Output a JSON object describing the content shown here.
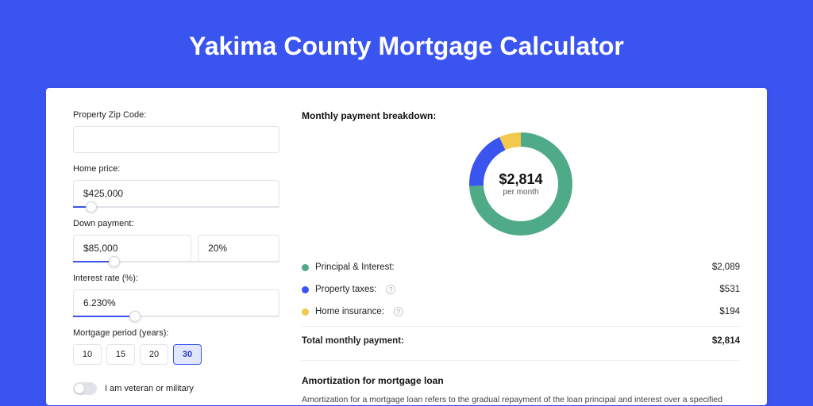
{
  "page_title": "Yakima County Mortgage Calculator",
  "colors": {
    "page_bg": "#3a54f0",
    "card_bg": "#ffffff",
    "accent": "#3a54f0",
    "text": "#222222",
    "muted_border": "#e1e3e8"
  },
  "form": {
    "zip": {
      "label": "Property Zip Code:",
      "value": ""
    },
    "home_price": {
      "label": "Home price:",
      "value": "$425,000",
      "slider_pct": 9
    },
    "down_payment": {
      "label": "Down payment:",
      "amount": "$85,000",
      "percent": "20%",
      "slider_pct": 20
    },
    "interest_rate": {
      "label": "Interest rate (%):",
      "value": "6.230%",
      "slider_pct": 30
    },
    "period": {
      "label": "Mortgage period (years):",
      "options": [
        "10",
        "15",
        "20",
        "30"
      ],
      "selected": "30"
    },
    "veteran": {
      "label": "I am veteran or military",
      "checked": false
    }
  },
  "breakdown": {
    "title": "Monthly payment breakdown:",
    "total_display": "$2,814",
    "subtitle": "per month",
    "donut": {
      "type": "donut",
      "stroke_width": 18,
      "radius": 56,
      "background": "#ffffff",
      "slices": [
        {
          "key": "principal_interest",
          "value": 2089,
          "color": "#4fab87"
        },
        {
          "key": "property_taxes",
          "value": 531,
          "color": "#3a54f0"
        },
        {
          "key": "home_insurance",
          "value": 194,
          "color": "#f2c94c"
        }
      ]
    },
    "rows": [
      {
        "name": "Principal & Interest:",
        "amount": "$2,089",
        "color": "#4fab87",
        "help": false
      },
      {
        "name": "Property taxes:",
        "amount": "$531",
        "color": "#3a54f0",
        "help": true
      },
      {
        "name": "Home insurance:",
        "amount": "$194",
        "color": "#f2c94c",
        "help": true
      }
    ],
    "total_row": {
      "name": "Total monthly payment:",
      "amount": "$2,814"
    }
  },
  "amortization": {
    "title": "Amortization for mortgage loan",
    "text": "Amortization for a mortgage loan refers to the gradual repayment of the loan principal and interest over a specified"
  }
}
